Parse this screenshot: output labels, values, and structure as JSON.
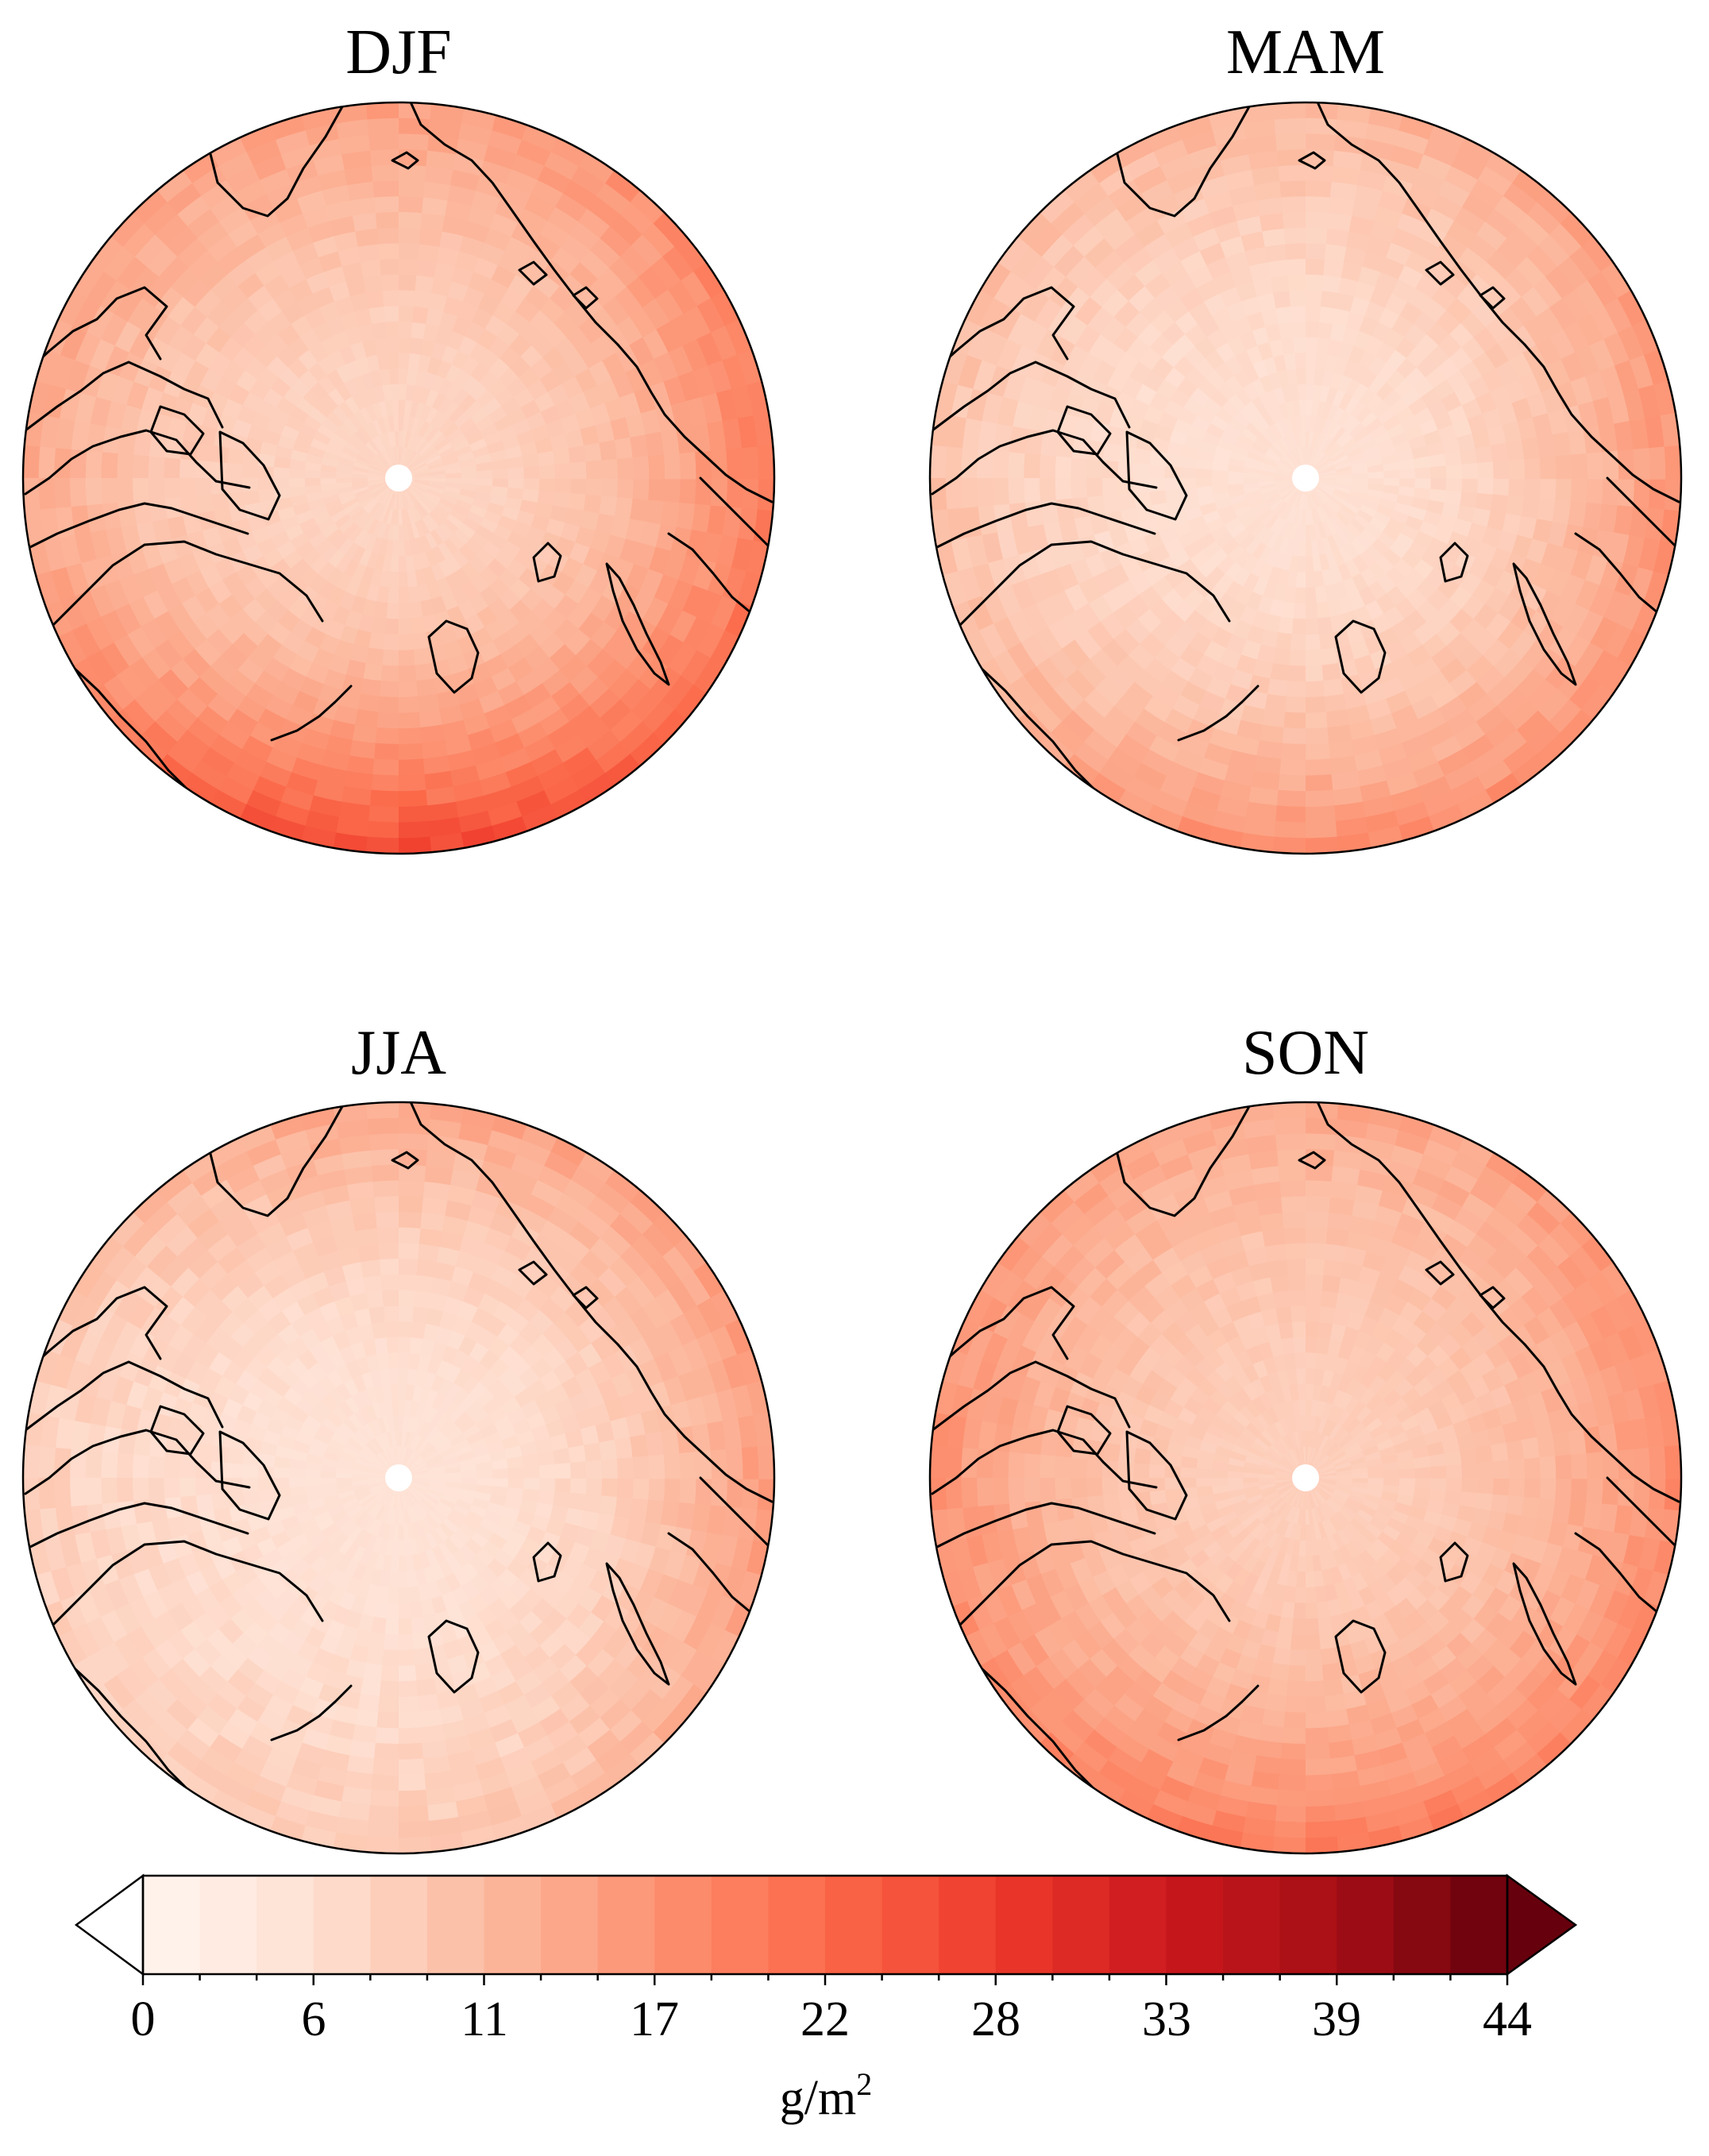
{
  "panels": [
    {
      "title": "DJF",
      "intensity": {
        "center": 0.16,
        "north_rim": 0.34,
        "east_rim": 0.45,
        "south_rim": 0.62,
        "west_rim": 0.3
      }
    },
    {
      "title": "MAM",
      "intensity": {
        "center": 0.12,
        "north_rim": 0.27,
        "east_rim": 0.38,
        "south_rim": 0.4,
        "west_rim": 0.22
      }
    },
    {
      "title": "JJA",
      "intensity": {
        "center": 0.11,
        "north_rim": 0.32,
        "east_rim": 0.36,
        "south_rim": 0.2,
        "west_rim": 0.18
      }
    },
    {
      "title": "SON",
      "intensity": {
        "center": 0.18,
        "north_rim": 0.3,
        "east_rim": 0.4,
        "south_rim": 0.45,
        "west_rim": 0.38
      }
    }
  ],
  "colorbar": {
    "min": 0,
    "max": 44,
    "levels": 24,
    "extend": "both",
    "tick_labels": [
      "0",
      "6",
      "11",
      "17",
      "22",
      "28",
      "33",
      "39",
      "44"
    ],
    "unit_base": "g/m",
    "unit_exp": "2",
    "colormap": [
      "#fff5f0",
      "#fee0d2",
      "#fcbba1",
      "#fc9272",
      "#fb6a4a",
      "#ef3b2c",
      "#cb181d",
      "#a50f15",
      "#67000d"
    ]
  }
}
